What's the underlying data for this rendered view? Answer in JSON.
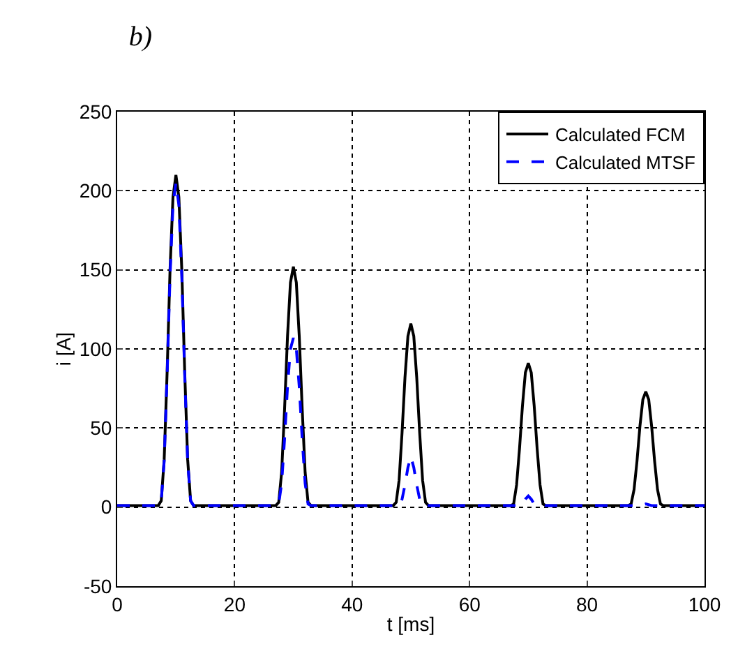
{
  "chart_data": {
    "type": "line",
    "title": "b)",
    "xlabel": "t [ms]",
    "ylabel": "i [A]",
    "xlim": [
      0,
      100
    ],
    "ylim": [
      -50,
      250
    ],
    "xticks": [
      0,
      20,
      40,
      60,
      80,
      100
    ],
    "yticks": [
      -50,
      0,
      50,
      100,
      150,
      200,
      250
    ],
    "grid": true,
    "legend": "top right",
    "marker": "none",
    "series": [
      {
        "name": "Calculated FCM",
        "color": "#000000",
        "line_style": "solid",
        "x": [
          0,
          7,
          7.5,
          8,
          8.5,
          9,
          9.5,
          10,
          10.5,
          11,
          11.5,
          12,
          12.5,
          13,
          27,
          27.5,
          28,
          28.5,
          29,
          29.5,
          30,
          30.5,
          31,
          31.5,
          32,
          32.5,
          33,
          47,
          47.5,
          48,
          48.5,
          49,
          49.5,
          50,
          50.5,
          51,
          51.5,
          52,
          52.5,
          53,
          67,
          67.5,
          68,
          68.5,
          69,
          69.5,
          70,
          70.5,
          71,
          71.5,
          72,
          72.5,
          73,
          87,
          87.5,
          88,
          88.5,
          89,
          89.5,
          90,
          90.5,
          91,
          91.5,
          92,
          92.5,
          93,
          100
        ],
        "values": [
          1,
          1,
          4,
          30,
          85,
          150,
          196,
          210,
          196,
          150,
          85,
          30,
          4,
          1,
          1,
          3,
          22,
          62,
          108,
          142,
          152,
          142,
          108,
          62,
          22,
          3,
          1,
          1,
          3,
          17,
          47,
          82,
          108,
          116,
          108,
          82,
          47,
          17,
          3,
          1,
          1,
          2,
          14,
          37,
          64,
          85,
          91,
          85,
          64,
          37,
          14,
          2,
          1,
          1,
          2,
          11,
          29,
          51,
          68,
          73,
          68,
          51,
          29,
          11,
          2,
          1,
          1
        ]
      },
      {
        "name": "Calculated MTSF",
        "color": "#0000ff",
        "line_style": "dashed",
        "x": [
          0,
          7,
          7.5,
          8,
          8.5,
          9,
          9.5,
          10,
          10.5,
          11,
          11.5,
          12,
          12.5,
          13,
          27,
          27.5,
          28,
          28.5,
          29,
          29.5,
          30,
          30.5,
          31,
          31.5,
          32,
          32.5,
          33,
          48,
          48.5,
          49,
          49.5,
          50,
          50.5,
          51,
          51.5,
          52,
          68,
          69,
          69.5,
          70,
          70.5,
          71,
          72,
          88,
          89,
          90,
          91,
          92,
          100
        ],
        "values": [
          1,
          1,
          4,
          29,
          83,
          146,
          191,
          205,
          191,
          146,
          83,
          29,
          4,
          1,
          1,
          2,
          15,
          43,
          76,
          100,
          107,
          100,
          76,
          43,
          15,
          2,
          1,
          1,
          5,
          14,
          25,
          32,
          25,
          14,
          5,
          1,
          1,
          2,
          5,
          7,
          5,
          2,
          1,
          1,
          1,
          2,
          1,
          1,
          1
        ]
      }
    ]
  }
}
